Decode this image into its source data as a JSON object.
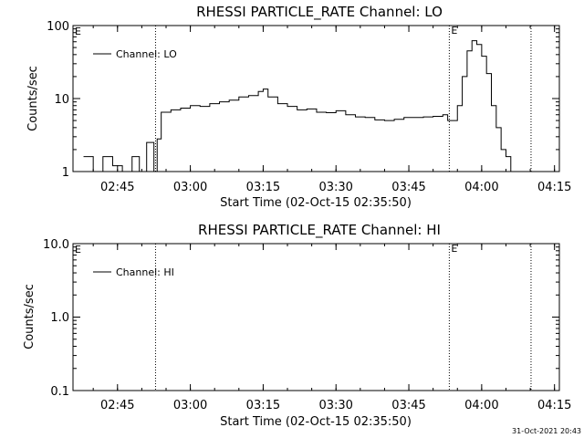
{
  "chart_data": [
    {
      "type": "line",
      "title": "RHESSI PARTICLE_RATE Channel: LO",
      "xlabel": "Start Time (02-Oct-15 02:35:50)",
      "ylabel": "Counts/sec",
      "yscale": "log",
      "ylim": [
        1,
        100
      ],
      "xlim": [
        "02:35:50",
        "04:16:00"
      ],
      "x_ticks": [
        "02:45",
        "03:00",
        "03:15",
        "03:30",
        "03:45",
        "04:00",
        "04:15"
      ],
      "y_ticks": [
        "1",
        "10",
        "100"
      ],
      "legend": {
        "entries": [
          "Channel: LO"
        ],
        "placement": "top-left"
      },
      "markers": [
        {
          "time": "02:52:50",
          "label": ""
        },
        {
          "time": "03:53:20",
          "label": "E"
        },
        {
          "time": "04:10:10",
          "label": ""
        }
      ],
      "start_marker_label": "E",
      "series": [
        {
          "name": "Channel: LO",
          "x": [
            "02:38:00",
            "02:40:00",
            "02:42:00",
            "02:44:00",
            "02:46:00",
            "02:48:00",
            "02:49:30",
            "02:51:00",
            "02:52:30",
            "02:53:10",
            "02:54:00",
            "02:56:00",
            "02:58:00",
            "03:00:00",
            "03:02:00",
            "03:04:00",
            "03:06:00",
            "03:08:00",
            "03:10:00",
            "03:12:00",
            "03:14:00",
            "03:15:00",
            "03:16:00",
            "03:18:00",
            "03:20:00",
            "03:22:00",
            "03:24:00",
            "03:26:00",
            "03:28:00",
            "03:30:00",
            "03:32:00",
            "03:34:00",
            "03:36:00",
            "03:38:00",
            "03:40:00",
            "03:42:00",
            "03:44:00",
            "03:46:00",
            "03:48:00",
            "03:50:00",
            "03:52:00",
            "03:53:00",
            "03:53:20",
            "03:55:00",
            "03:56:00",
            "03:57:00",
            "03:58:00",
            "03:59:00",
            "04:00:00",
            "04:01:00",
            "04:02:00",
            "04:03:00",
            "04:04:00",
            "04:05:00",
            "04:06:00",
            "04:07:00",
            "04:08:00"
          ],
          "values": [
            1.6,
            1.0,
            1.6,
            1.2,
            1.0,
            1.6,
            1.0,
            2.5,
            1.0,
            2.8,
            6.5,
            7.0,
            7.4,
            8.0,
            7.8,
            8.5,
            9.0,
            9.5,
            10.5,
            11.0,
            12.5,
            13.5,
            10.5,
            8.5,
            7.8,
            7.0,
            7.2,
            6.5,
            6.4,
            6.8,
            6.0,
            5.6,
            5.5,
            5.1,
            5.0,
            5.2,
            5.5,
            5.5,
            5.6,
            5.7,
            6.0,
            5.0,
            5.0,
            8.0,
            20.0,
            45.0,
            62.0,
            55.0,
            38.0,
            22.0,
            8.0,
            4.0,
            2.0,
            1.6,
            1.0,
            1.0,
            1.0
          ]
        }
      ]
    },
    {
      "type": "line",
      "title": "RHESSI PARTICLE_RATE Channel: HI",
      "xlabel": "Start Time (02-Oct-15 02:35:50)",
      "ylabel": "Counts/sec",
      "yscale": "log",
      "ylim": [
        0.1,
        10.0
      ],
      "xlim": [
        "02:35:50",
        "04:16:00"
      ],
      "x_ticks": [
        "02:45",
        "03:00",
        "03:15",
        "03:30",
        "03:45",
        "04:00",
        "04:15"
      ],
      "y_ticks": [
        "0.1",
        "1.0",
        "10.0"
      ],
      "legend": {
        "entries": [
          "Channel: HI"
        ],
        "placement": "top-left"
      },
      "markers": [
        {
          "time": "02:52:50",
          "label": ""
        },
        {
          "time": "03:53:20",
          "label": "E"
        },
        {
          "time": "04:10:10",
          "label": ""
        }
      ],
      "start_marker_label": "E",
      "series": [
        {
          "name": "Channel: HI",
          "x": [],
          "values": []
        }
      ]
    }
  ],
  "footer": {
    "timestamp": "31-Oct-2021 20:43"
  }
}
